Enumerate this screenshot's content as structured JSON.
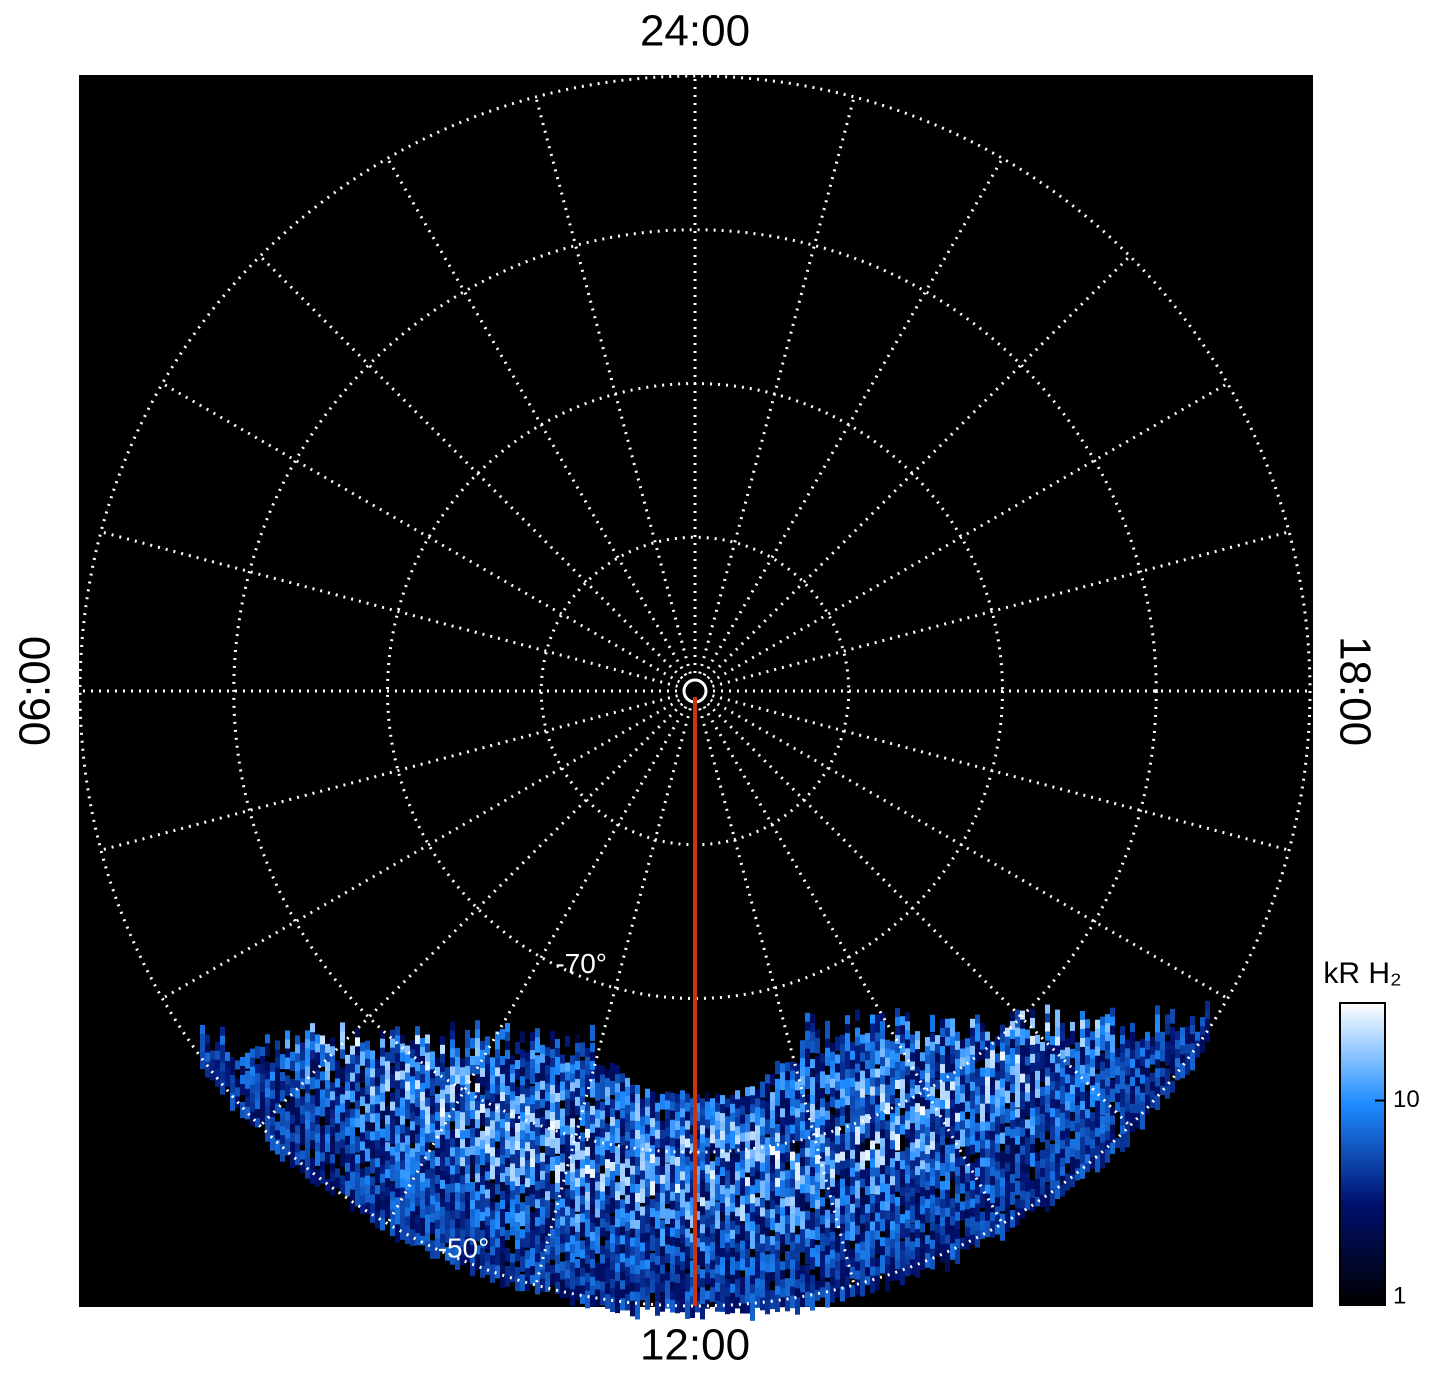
{
  "chart_data": {
    "type": "polar",
    "hour_ticks": [
      {
        "value": 24,
        "label": "24:00"
      },
      {
        "value": 6,
        "label": "06:00"
      },
      {
        "value": 18,
        "label": "18:00"
      },
      {
        "value": 12,
        "label": "12:00"
      }
    ],
    "meridians": 24,
    "rlim": [
      -90,
      -50
    ],
    "lat_circles": [
      -80,
      -70,
      -60,
      -50
    ],
    "lat_labels": [
      {
        "value": -70,
        "label": "-70°"
      },
      {
        "value": -50,
        "label": "-50°"
      }
    ],
    "highlight_meridian": {
      "hour": 12,
      "color": "#cc3311"
    },
    "colorbar": {
      "label": "kR H₂",
      "clim": [
        1,
        30
      ],
      "log": true,
      "ticks": [
        1,
        10
      ],
      "colors": [
        "#000000",
        "#00106e",
        "#1e8cff",
        "#ffffff"
      ]
    }
  }
}
